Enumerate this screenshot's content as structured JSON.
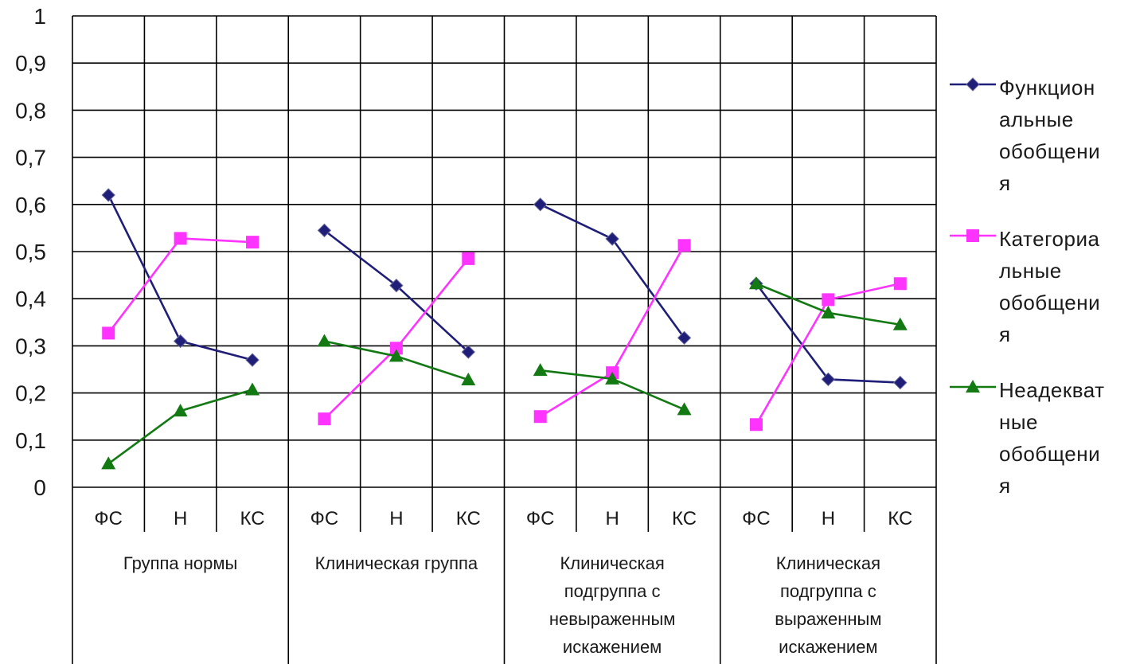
{
  "chart_data": {
    "type": "line",
    "ylim": [
      0,
      1
    ],
    "y_ticks": [
      "0",
      "0,1",
      "0,2",
      "0,3",
      "0,4",
      "0,5",
      "0,6",
      "0,7",
      "0,8",
      "0,9",
      "1"
    ],
    "categories": [
      "ФС",
      "Н",
      "КС",
      "ФС",
      "Н",
      "КС",
      "ФС",
      "Н",
      "КС",
      "ФС",
      "Н",
      "КС"
    ],
    "groups": [
      {
        "label": "Группа нормы",
        "lines": [
          "Группа нормы"
        ]
      },
      {
        "label": "Клиническая группа",
        "lines": [
          "Клиническая группа"
        ]
      },
      {
        "label": "Клиническая подгруппа с невыраженным искажением",
        "lines": [
          "Клиническая",
          "подгруппа с",
          "невыраженным",
          "искажением"
        ]
      },
      {
        "label": "Клиническая подгруппа с выраженным искажением",
        "lines": [
          "Клиническая",
          "подгруппа с",
          "выраженным",
          "искажением"
        ]
      }
    ],
    "grid": true,
    "legend_position": "right",
    "series": [
      {
        "name": "Функциональные обобщения",
        "name_lines": [
          "Функцион",
          "альные",
          "обобщени",
          "я"
        ],
        "color": "#1f1f7a",
        "marker": "diamond",
        "values": [
          0.62,
          0.31,
          0.27,
          0.545,
          0.428,
          0.287,
          0.6,
          0.527,
          0.317,
          0.432,
          0.229,
          0.222
        ]
      },
      {
        "name": "Категориальные обобщения",
        "name_lines": [
          "Категориа",
          "льные",
          "обобщени",
          "я"
        ],
        "color": "#ff33ff",
        "marker": "square",
        "values": [
          0.327,
          0.528,
          0.52,
          0.145,
          0.295,
          0.485,
          0.15,
          0.243,
          0.513,
          0.133,
          0.398,
          0.432
        ]
      },
      {
        "name": "Неадекватные обобщения",
        "name_lines": [
          "Неадекват",
          "ные",
          "обобщени",
          "я"
        ],
        "color": "#137a13",
        "marker": "triangle",
        "values": [
          0.05,
          0.162,
          0.207,
          0.31,
          0.278,
          0.228,
          0.248,
          0.23,
          0.165,
          0.432,
          0.37,
          0.345
        ]
      }
    ]
  }
}
